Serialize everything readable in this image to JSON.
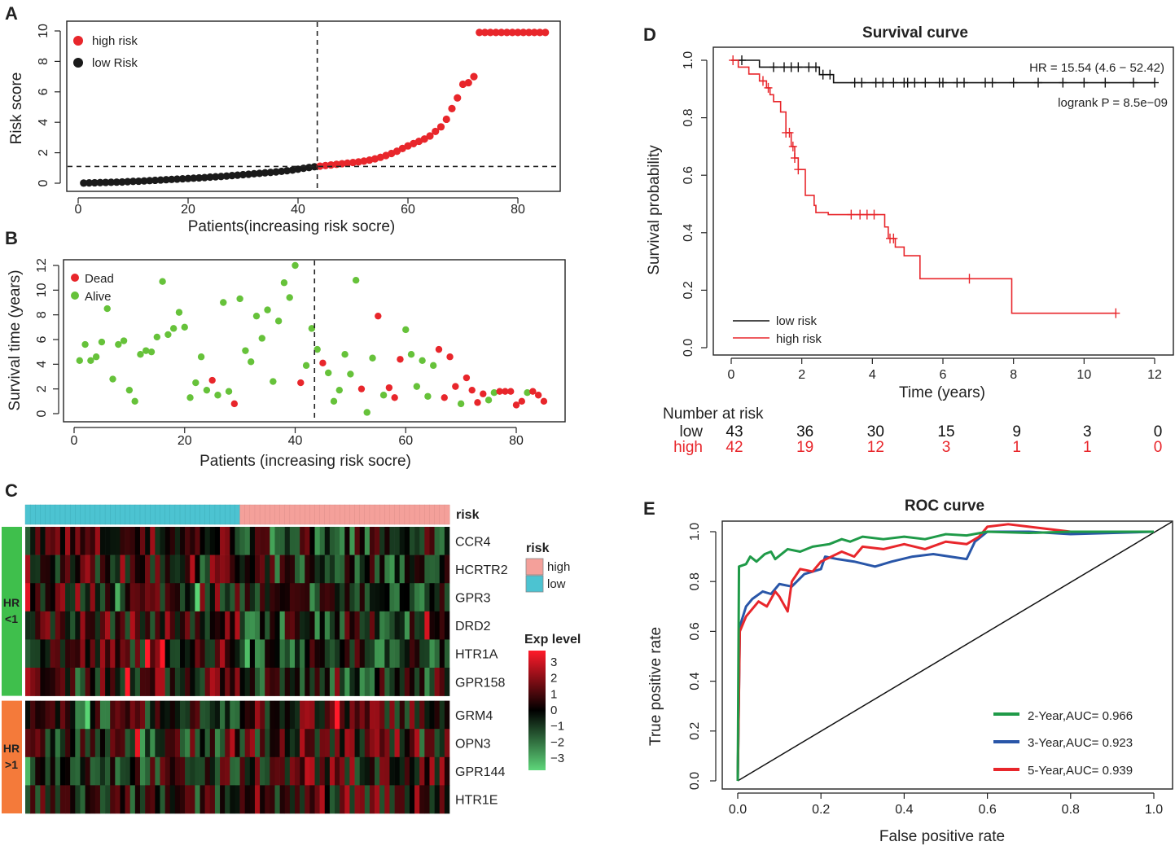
{
  "figure": {
    "panel_A": "A",
    "panel_B": "B",
    "panel_C": "C",
    "panel_D": "D",
    "panel_E": "E"
  },
  "chart_data": [
    {
      "id": "A",
      "type": "scatter",
      "xlabel": "Patients(increasing risk socre)",
      "ylabel": "Risk score",
      "xlim": [
        0,
        86
      ],
      "ylim": [
        0,
        10
      ],
      "xticks": [
        "0",
        "20",
        "40",
        "60",
        "80"
      ],
      "yticks": [
        "0",
        "2",
        "4",
        "6",
        "8",
        "10"
      ],
      "cutoff_x": 43.5,
      "cutoff_y": 1.1,
      "legend": [
        "high risk",
        "low Risk"
      ],
      "colors": {
        "high": "#e8262b",
        "low": "#1a1a1a"
      },
      "low_values": [
        0.01,
        0.02,
        0.03,
        0.04,
        0.05,
        0.06,
        0.07,
        0.08,
        0.1,
        0.12,
        0.13,
        0.15,
        0.17,
        0.19,
        0.21,
        0.23,
        0.25,
        0.27,
        0.29,
        0.31,
        0.33,
        0.35,
        0.37,
        0.4,
        0.42,
        0.44,
        0.47,
        0.5,
        0.53,
        0.56,
        0.59,
        0.62,
        0.65,
        0.68,
        0.71,
        0.74,
        0.78,
        0.82,
        0.86,
        0.92,
        0.98,
        1.03,
        1.08
      ],
      "high_values": [
        1.12,
        1.16,
        1.2,
        1.24,
        1.28,
        1.32,
        1.36,
        1.4,
        1.45,
        1.52,
        1.6,
        1.7,
        1.82,
        1.95,
        2.1,
        2.28,
        2.45,
        2.6,
        2.75,
        2.9,
        3.1,
        3.4,
        3.7,
        4.2,
        4.9,
        5.6,
        6.5,
        6.6,
        7.0,
        9.9,
        9.9,
        9.9,
        9.9,
        9.9,
        9.9,
        9.9,
        9.9,
        9.9,
        9.9,
        9.9,
        9.9,
        9.9
      ]
    },
    {
      "id": "B",
      "type": "scatter",
      "xlabel": "Patients (increasing risk socre)",
      "ylabel": "Survival time (years)",
      "xlim": [
        0,
        86
      ],
      "ylim": [
        0,
        12
      ],
      "xticks": [
        "0",
        "20",
        "40",
        "60",
        "80"
      ],
      "yticks": [
        "0",
        "2",
        "4",
        "6",
        "8",
        "10",
        "12"
      ],
      "cutoff_x": 43.5,
      "legend": [
        "Dead",
        "Alive"
      ],
      "colors": {
        "dead": "#e8262b",
        "alive": "#66c23a"
      },
      "points": [
        [
          1,
          4.3,
          0
        ],
        [
          2,
          5.6,
          0
        ],
        [
          3,
          4.3,
          0
        ],
        [
          4,
          4.6,
          0
        ],
        [
          5,
          5.8,
          0
        ],
        [
          6,
          8.5,
          0
        ],
        [
          7,
          2.8,
          0
        ],
        [
          8,
          5.6,
          0
        ],
        [
          9,
          5.9,
          0
        ],
        [
          10,
          1.9,
          0
        ],
        [
          11,
          1.0,
          0
        ],
        [
          12,
          4.8,
          0
        ],
        [
          13,
          5.1,
          0
        ],
        [
          14,
          5.0,
          0
        ],
        [
          15,
          6.2,
          0
        ],
        [
          16,
          10.7,
          0
        ],
        [
          17,
          6.4,
          0
        ],
        [
          18,
          6.9,
          0
        ],
        [
          19,
          8.2,
          0
        ],
        [
          20,
          7.0,
          0
        ],
        [
          21,
          1.3,
          0
        ],
        [
          22,
          2.5,
          0
        ],
        [
          23,
          4.6,
          0
        ],
        [
          24,
          1.9,
          0
        ],
        [
          25,
          2.7,
          1
        ],
        [
          26,
          1.5,
          0
        ],
        [
          27,
          9.0,
          0
        ],
        [
          28,
          1.8,
          0
        ],
        [
          29,
          0.8,
          1
        ],
        [
          30,
          9.3,
          0
        ],
        [
          31,
          5.1,
          0
        ],
        [
          32,
          4.2,
          0
        ],
        [
          33,
          7.9,
          0
        ],
        [
          34,
          6.1,
          0
        ],
        [
          35,
          8.4,
          0
        ],
        [
          36,
          2.6,
          0
        ],
        [
          37,
          7.5,
          0
        ],
        [
          38,
          10.6,
          0
        ],
        [
          39,
          9.4,
          0
        ],
        [
          40,
          12.0,
          0
        ],
        [
          41,
          2.5,
          1
        ],
        [
          42,
          3.9,
          0
        ],
        [
          43,
          6.9,
          0
        ],
        [
          44,
          5.2,
          0
        ],
        [
          45,
          4.1,
          1
        ],
        [
          46,
          3.3,
          0
        ],
        [
          47,
          1.0,
          0
        ],
        [
          48,
          1.9,
          0
        ],
        [
          49,
          4.8,
          0
        ],
        [
          50,
          3.2,
          0
        ],
        [
          51,
          10.8,
          0
        ],
        [
          52,
          2.0,
          1
        ],
        [
          53,
          0.1,
          0
        ],
        [
          54,
          4.5,
          0
        ],
        [
          55,
          7.9,
          1
        ],
        [
          56,
          1.5,
          0
        ],
        [
          57,
          2.1,
          1
        ],
        [
          58,
          1.3,
          1
        ],
        [
          59,
          4.4,
          1
        ],
        [
          60,
          6.8,
          0
        ],
        [
          61,
          4.8,
          0
        ],
        [
          62,
          2.2,
          0
        ],
        [
          63,
          4.3,
          0
        ],
        [
          64,
          1.4,
          0
        ],
        [
          65,
          3.9,
          0
        ],
        [
          66,
          5.2,
          1
        ],
        [
          67,
          1.3,
          1
        ],
        [
          68,
          4.6,
          1
        ],
        [
          69,
          2.2,
          1
        ],
        [
          70,
          0.8,
          0
        ],
        [
          71,
          2.9,
          1
        ],
        [
          72,
          1.9,
          1
        ],
        [
          73,
          0.9,
          1
        ],
        [
          74,
          1.6,
          1
        ],
        [
          75,
          1.1,
          0
        ],
        [
          76,
          1.7,
          0
        ],
        [
          77,
          1.8,
          1
        ],
        [
          78,
          1.8,
          1
        ],
        [
          79,
          1.8,
          1
        ],
        [
          80,
          0.7,
          1
        ],
        [
          81,
          1.0,
          1
        ],
        [
          82,
          1.7,
          0
        ],
        [
          83,
          1.8,
          1
        ],
        [
          84,
          1.5,
          1
        ],
        [
          85,
          1.0,
          1
        ]
      ]
    },
    {
      "id": "C",
      "type": "heatmap",
      "risk_label": "risk",
      "risk_legend": {
        "title": "risk",
        "high": "high",
        "low": "low"
      },
      "risk_colors": {
        "high": "#f4a09a",
        "low": "#4cc3d1"
      },
      "low_count": 43,
      "high_count": 42,
      "groups": [
        {
          "label_1": "HR",
          "label_2": "<1",
          "color": "#3fbf4c",
          "genes": [
            "CCR4",
            "HCRTR2",
            "GPR3",
            "DRD2",
            "HTR1A",
            "GPR158"
          ]
        },
        {
          "label_1": "HR",
          "label_2": ">1",
          "color": "#f47a3a",
          "genes": [
            "GRM4",
            "OPN3",
            "GPR144",
            "HTR1E"
          ]
        }
      ],
      "scale_title": "Exp level",
      "scale_ticks": [
        "3",
        "2",
        "1",
        "0",
        "−1",
        "−2",
        "−3"
      ],
      "scale_values": [
        3,
        2,
        1,
        0,
        -1,
        -2,
        -3
      ]
    },
    {
      "id": "D",
      "type": "line",
      "title": "Survival curve",
      "xlabel": "Time (years)",
      "ylabel": "Survival probability",
      "xlim": [
        0,
        12
      ],
      "ylim": [
        0,
        1
      ],
      "xticks": [
        "0",
        "2",
        "4",
        "6",
        "8",
        "10",
        "12"
      ],
      "yticks": [
        "0.0",
        "0.2",
        "0.4",
        "0.6",
        "0.8",
        "1.0"
      ],
      "hr_text": "HR = 15.54 (4.6 − 52.42)",
      "p_text": "logrank P = 8.5e−09",
      "series": [
        {
          "name": "low risk",
          "color": "#111111",
          "steps": [
            [
              0,
              1.0
            ],
            [
              0.8,
              0.976
            ],
            [
              2.5,
              0.95
            ],
            [
              2.9,
              0.922
            ],
            [
              12,
              0.922
            ]
          ],
          "censors": [
            0.3,
            1.2,
            1.5,
            1.7,
            1.9,
            2.2,
            2.4,
            2.6,
            2.8,
            3.5,
            3.7,
            4.1,
            4.3,
            4.6,
            4.9,
            5.0,
            5.2,
            5.5,
            5.9,
            6.0,
            6.4,
            6.6,
            7.2,
            7.4,
            8.0,
            8.7,
            9.4,
            10.0,
            10.6,
            11.4,
            12.0
          ]
        },
        {
          "name": "high risk",
          "color": "#e8262b",
          "steps": [
            [
              0,
              1.0
            ],
            [
              0.2,
              0.976
            ],
            [
              0.5,
              0.952
            ],
            [
              0.8,
              0.928
            ],
            [
              1.0,
              0.904
            ],
            [
              1.1,
              0.88
            ],
            [
              1.2,
              0.856
            ],
            [
              1.4,
              0.82
            ],
            [
              1.55,
              0.748
            ],
            [
              1.7,
              0.7
            ],
            [
              1.8,
              0.66
            ],
            [
              1.9,
              0.62
            ],
            [
              2.1,
              0.53
            ],
            [
              2.35,
              0.495
            ],
            [
              2.4,
              0.47
            ],
            [
              2.75,
              0.463
            ],
            [
              4.2,
              0.463
            ],
            [
              4.35,
              0.42
            ],
            [
              4.45,
              0.38
            ],
            [
              4.65,
              0.35
            ],
            [
              4.9,
              0.32
            ],
            [
              5.35,
              0.24
            ],
            [
              7.95,
              0.24
            ],
            [
              7.95,
              0.12
            ],
            [
              10.9,
              0.12
            ]
          ],
          "censors": [
            0.05,
            0.9,
            1.05,
            1.55,
            1.65,
            1.75,
            1.8,
            1.9,
            3.4,
            3.65,
            3.85,
            4.05,
            4.5,
            4.6,
            6.75,
            10.9
          ]
        }
      ],
      "risk_table": {
        "title": "Number at risk",
        "rows": [
          {
            "label": "low",
            "color": "#111111",
            "values": [
              "43",
              "36",
              "30",
              "15",
              "9",
              "3",
              "0"
            ]
          },
          {
            "label": "high",
            "color": "#e8262b",
            "values": [
              "42",
              "19",
              "12",
              "3",
              "1",
              "1",
              "0"
            ]
          }
        ]
      }
    },
    {
      "id": "E",
      "type": "line",
      "title": "ROC curve",
      "xlabel": "False positive rate",
      "ylabel": "True positive rate",
      "xlim": [
        0,
        1
      ],
      "ylim": [
        0,
        1
      ],
      "xticks": [
        "0.0",
        "0.2",
        "0.4",
        "0.6",
        "0.8",
        "1.0"
      ],
      "yticks": [
        "0.0",
        "0.2",
        "0.4",
        "0.6",
        "0.8",
        "1.0"
      ],
      "series": [
        {
          "name": "2-Year,AUC= 0.966",
          "color": "#1f9a48",
          "points": [
            [
              0,
              0
            ],
            [
              0.003,
              0.86
            ],
            [
              0.02,
              0.87
            ],
            [
              0.03,
              0.9
            ],
            [
              0.045,
              0.88
            ],
            [
              0.065,
              0.91
            ],
            [
              0.08,
              0.92
            ],
            [
              0.09,
              0.89
            ],
            [
              0.12,
              0.93
            ],
            [
              0.15,
              0.92
            ],
            [
              0.18,
              0.94
            ],
            [
              0.22,
              0.95
            ],
            [
              0.25,
              0.97
            ],
            [
              0.27,
              0.96
            ],
            [
              0.3,
              0.98
            ],
            [
              0.35,
              0.97
            ],
            [
              0.4,
              0.98
            ],
            [
              0.45,
              0.97
            ],
            [
              0.5,
              0.99
            ],
            [
              0.55,
              0.985
            ],
            [
              0.6,
              1.0
            ],
            [
              0.7,
              0.995
            ],
            [
              0.8,
              1.0
            ],
            [
              1.0,
              1.0
            ]
          ]
        },
        {
          "name": "3-Year,AUC= 0.923",
          "color": "#2956a8",
          "points": [
            [
              0,
              0
            ],
            [
              0.005,
              0.62
            ],
            [
              0.02,
              0.7
            ],
            [
              0.035,
              0.73
            ],
            [
              0.06,
              0.76
            ],
            [
              0.08,
              0.75
            ],
            [
              0.1,
              0.79
            ],
            [
              0.13,
              0.78
            ],
            [
              0.16,
              0.83
            ],
            [
              0.2,
              0.85
            ],
            [
              0.21,
              0.9
            ],
            [
              0.24,
              0.89
            ],
            [
              0.28,
              0.88
            ],
            [
              0.33,
              0.86
            ],
            [
              0.37,
              0.88
            ],
            [
              0.42,
              0.9
            ],
            [
              0.47,
              0.91
            ],
            [
              0.55,
              0.89
            ],
            [
              0.57,
              0.96
            ],
            [
              0.6,
              1.0
            ],
            [
              0.7,
              1.0
            ],
            [
              0.8,
              0.99
            ],
            [
              1.0,
              1.0
            ]
          ]
        },
        {
          "name": "5-Year,AUC= 0.939",
          "color": "#e8262b",
          "points": [
            [
              0,
              0
            ],
            [
              0.005,
              0.6
            ],
            [
              0.02,
              0.66
            ],
            [
              0.05,
              0.72
            ],
            [
              0.07,
              0.7
            ],
            [
              0.09,
              0.76
            ],
            [
              0.1,
              0.74
            ],
            [
              0.12,
              0.68
            ],
            [
              0.13,
              0.8
            ],
            [
              0.15,
              0.85
            ],
            [
              0.18,
              0.84
            ],
            [
              0.2,
              0.88
            ],
            [
              0.25,
              0.92
            ],
            [
              0.28,
              0.9
            ],
            [
              0.3,
              0.94
            ],
            [
              0.35,
              0.93
            ],
            [
              0.4,
              0.95
            ],
            [
              0.45,
              0.93
            ],
            [
              0.5,
              0.96
            ],
            [
              0.55,
              0.95
            ],
            [
              0.58,
              0.98
            ],
            [
              0.6,
              1.02
            ],
            [
              0.65,
              1.03
            ],
            [
              0.7,
              1.02
            ],
            [
              0.8,
              1.0
            ],
            [
              1.0,
              1.0
            ]
          ]
        }
      ]
    }
  ]
}
